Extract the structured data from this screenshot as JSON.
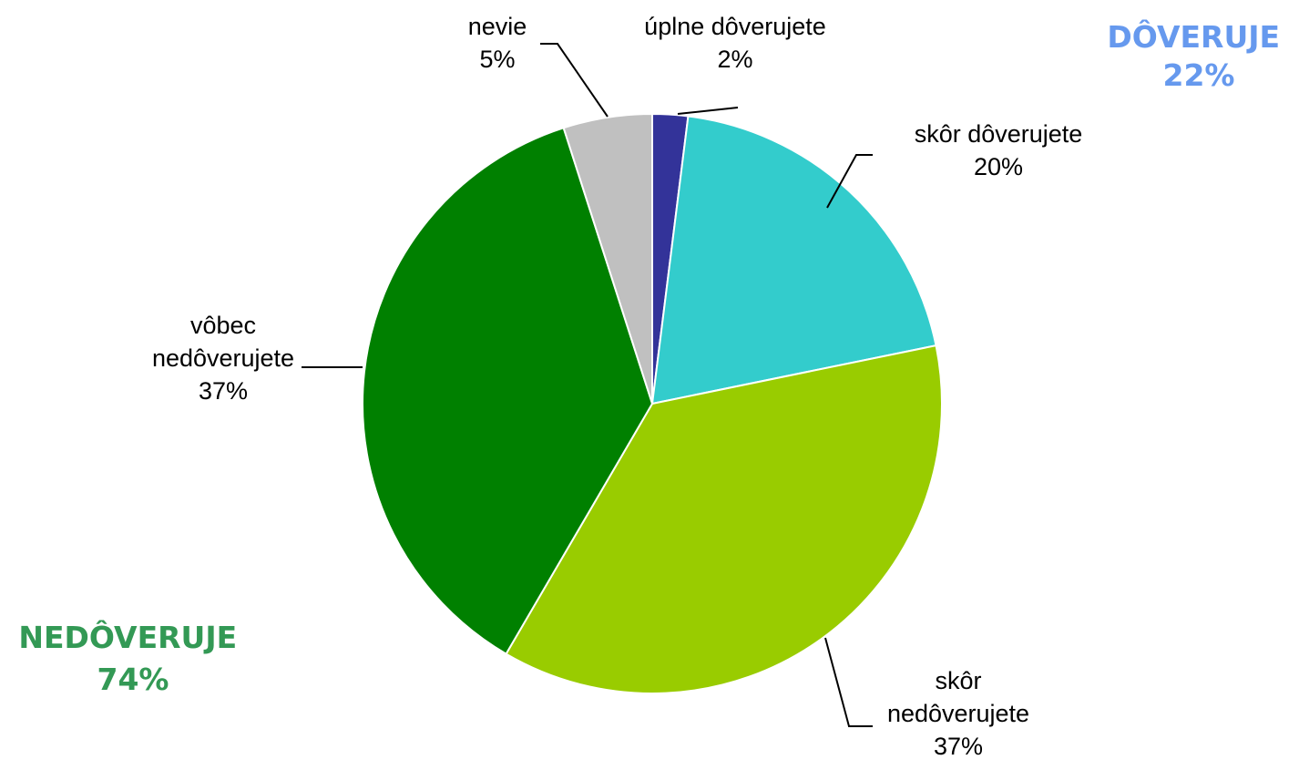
{
  "chart_data": {
    "type": "pie",
    "start_angle": "top",
    "direction": "clockwise",
    "slices": [
      {
        "label_lines": [
          "úplne dôverujete"
        ],
        "value": 2,
        "value_label": "2%",
        "color": "#333399"
      },
      {
        "label_lines": [
          "skôr dôverujete"
        ],
        "value": 20,
        "value_label": "20%",
        "color": "#33CCCC"
      },
      {
        "label_lines": [
          "skôr",
          "nedôverujete"
        ],
        "value": 37,
        "value_label": "37%",
        "color": "#99CC00"
      },
      {
        "label_lines": [
          "vôbec",
          "nedôverujete"
        ],
        "value": 37,
        "value_label": "37%",
        "color": "#008000"
      },
      {
        "label_lines": [
          "nevie"
        ],
        "value": 5,
        "value_label": "5%",
        "color": "#C0C0C0"
      }
    ],
    "groups": [
      {
        "name": "DÔVERUJE",
        "value_label": "22%",
        "color": "#6699EE"
      },
      {
        "name": "NEDÔVERUJE",
        "value_label": "74%",
        "color": "#339955"
      }
    ]
  }
}
